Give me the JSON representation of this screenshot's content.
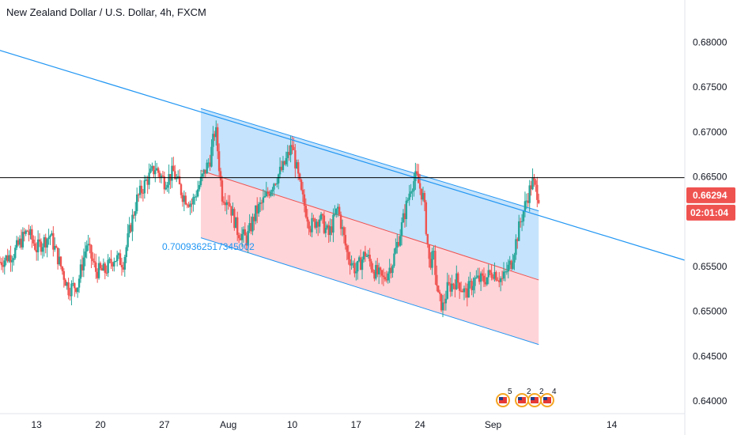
{
  "header": {
    "title": "New Zealand Dollar / U.S. Dollar, 4h, FXCM"
  },
  "price_badge": "0.66294",
  "countdown_badge": "02:01:04",
  "fib_label": "0.7009362517345002",
  "event_counts": [
    "5",
    "2",
    "2",
    "4"
  ],
  "colors": {
    "up": "#26a69a",
    "down": "#ef5350",
    "upper_band": "#bbdefb",
    "lower_band": "#ffcdd2",
    "trendline": "#2196f3",
    "badge": "#ef5350",
    "axis_text": "#131722",
    "horizontal_line": "#000000"
  },
  "chart_data": {
    "type": "candlestick",
    "symbol": "NZDUSD",
    "timeframe": "4h",
    "source": "FXCM",
    "y_ticks": [
      "0.68000",
      "0.67500",
      "0.67000",
      "0.66500",
      "0.66294",
      "0.65500",
      "0.65000",
      "0.64500",
      "0.64000"
    ],
    "y_tick_values": [
      0.68,
      0.675,
      0.67,
      0.665,
      0.6629,
      0.655,
      0.65,
      0.645,
      0.64
    ],
    "ylim": [
      0.6386,
      0.6847
    ],
    "x_ticks": [
      "13",
      "20",
      "27",
      "Aug",
      "10",
      "17",
      "24",
      "Sep",
      "14"
    ],
    "x_tick_days": [
      13,
      20,
      27,
      34,
      41,
      48,
      55,
      63,
      76
    ],
    "xlim": [
      9,
      84
    ],
    "horizontal_line": 0.6649,
    "current_price": 0.66294,
    "series_path": [
      [
        9,
        0.6555
      ],
      [
        10.5,
        0.6565
      ],
      [
        12,
        0.659
      ],
      [
        13,
        0.657
      ],
      [
        14.5,
        0.6585
      ],
      [
        15.5,
        0.6555
      ],
      [
        16.5,
        0.6525
      ],
      [
        17.5,
        0.653
      ],
      [
        18.5,
        0.6575
      ],
      [
        19.5,
        0.6545
      ],
      [
        20.5,
        0.6545
      ],
      [
        21.5,
        0.656
      ],
      [
        22.5,
        0.6555
      ],
      [
        23.3,
        0.6595
      ],
      [
        24,
        0.6625
      ],
      [
        25,
        0.6645
      ],
      [
        26,
        0.666
      ],
      [
        27,
        0.6645
      ],
      [
        28,
        0.6655
      ],
      [
        29,
        0.663
      ],
      [
        30,
        0.662
      ],
      [
        31,
        0.6645
      ],
      [
        32,
        0.667
      ],
      [
        32.6,
        0.6705
      ],
      [
        33.3,
        0.663
      ],
      [
        34,
        0.6625
      ],
      [
        35,
        0.659
      ],
      [
        36,
        0.658
      ],
      [
        37,
        0.661
      ],
      [
        38,
        0.6625
      ],
      [
        39,
        0.6645
      ],
      [
        40,
        0.666
      ],
      [
        41,
        0.6685
      ],
      [
        42,
        0.663
      ],
      [
        43,
        0.6595
      ],
      [
        44,
        0.6605
      ],
      [
        45,
        0.6585
      ],
      [
        46,
        0.6615
      ],
      [
        47,
        0.6565
      ],
      [
        48,
        0.6545
      ],
      [
        49,
        0.6565
      ],
      [
        50,
        0.6545
      ],
      [
        51,
        0.6535
      ],
      [
        52,
        0.6555
      ],
      [
        53,
        0.6595
      ],
      [
        54,
        0.664
      ],
      [
        54.6,
        0.665
      ],
      [
        55.4,
        0.6625
      ],
      [
        56,
        0.6555
      ],
      [
        56.5,
        0.656
      ],
      [
        57,
        0.6515
      ],
      [
        57.5,
        0.6505
      ],
      [
        58,
        0.6525
      ],
      [
        59,
        0.6535
      ],
      [
        60,
        0.652
      ],
      [
        61,
        0.6535
      ],
      [
        62,
        0.6535
      ],
      [
        63,
        0.6545
      ],
      [
        64,
        0.6535
      ],
      [
        65,
        0.6555
      ],
      [
        66,
        0.66
      ],
      [
        66.7,
        0.6625
      ],
      [
        67.3,
        0.6645
      ],
      [
        68,
        0.6629
      ]
    ],
    "trendline_upper": [
      [
        7,
        0.6797
      ],
      [
        84,
        0.6557
      ]
    ],
    "regression_channel": {
      "start": 31,
      "end": 68,
      "top": [
        0.6726,
        0.6612
      ],
      "mid": [
        0.6657,
        0.6535
      ],
      "bottom": [
        0.6582,
        0.6463
      ]
    },
    "events": [
      {
        "flag": "US",
        "count": "5"
      },
      {
        "flag": "US",
        "count": "2"
      },
      {
        "flag": "US",
        "count": "2"
      },
      {
        "flag": "US",
        "count": "4"
      }
    ]
  }
}
